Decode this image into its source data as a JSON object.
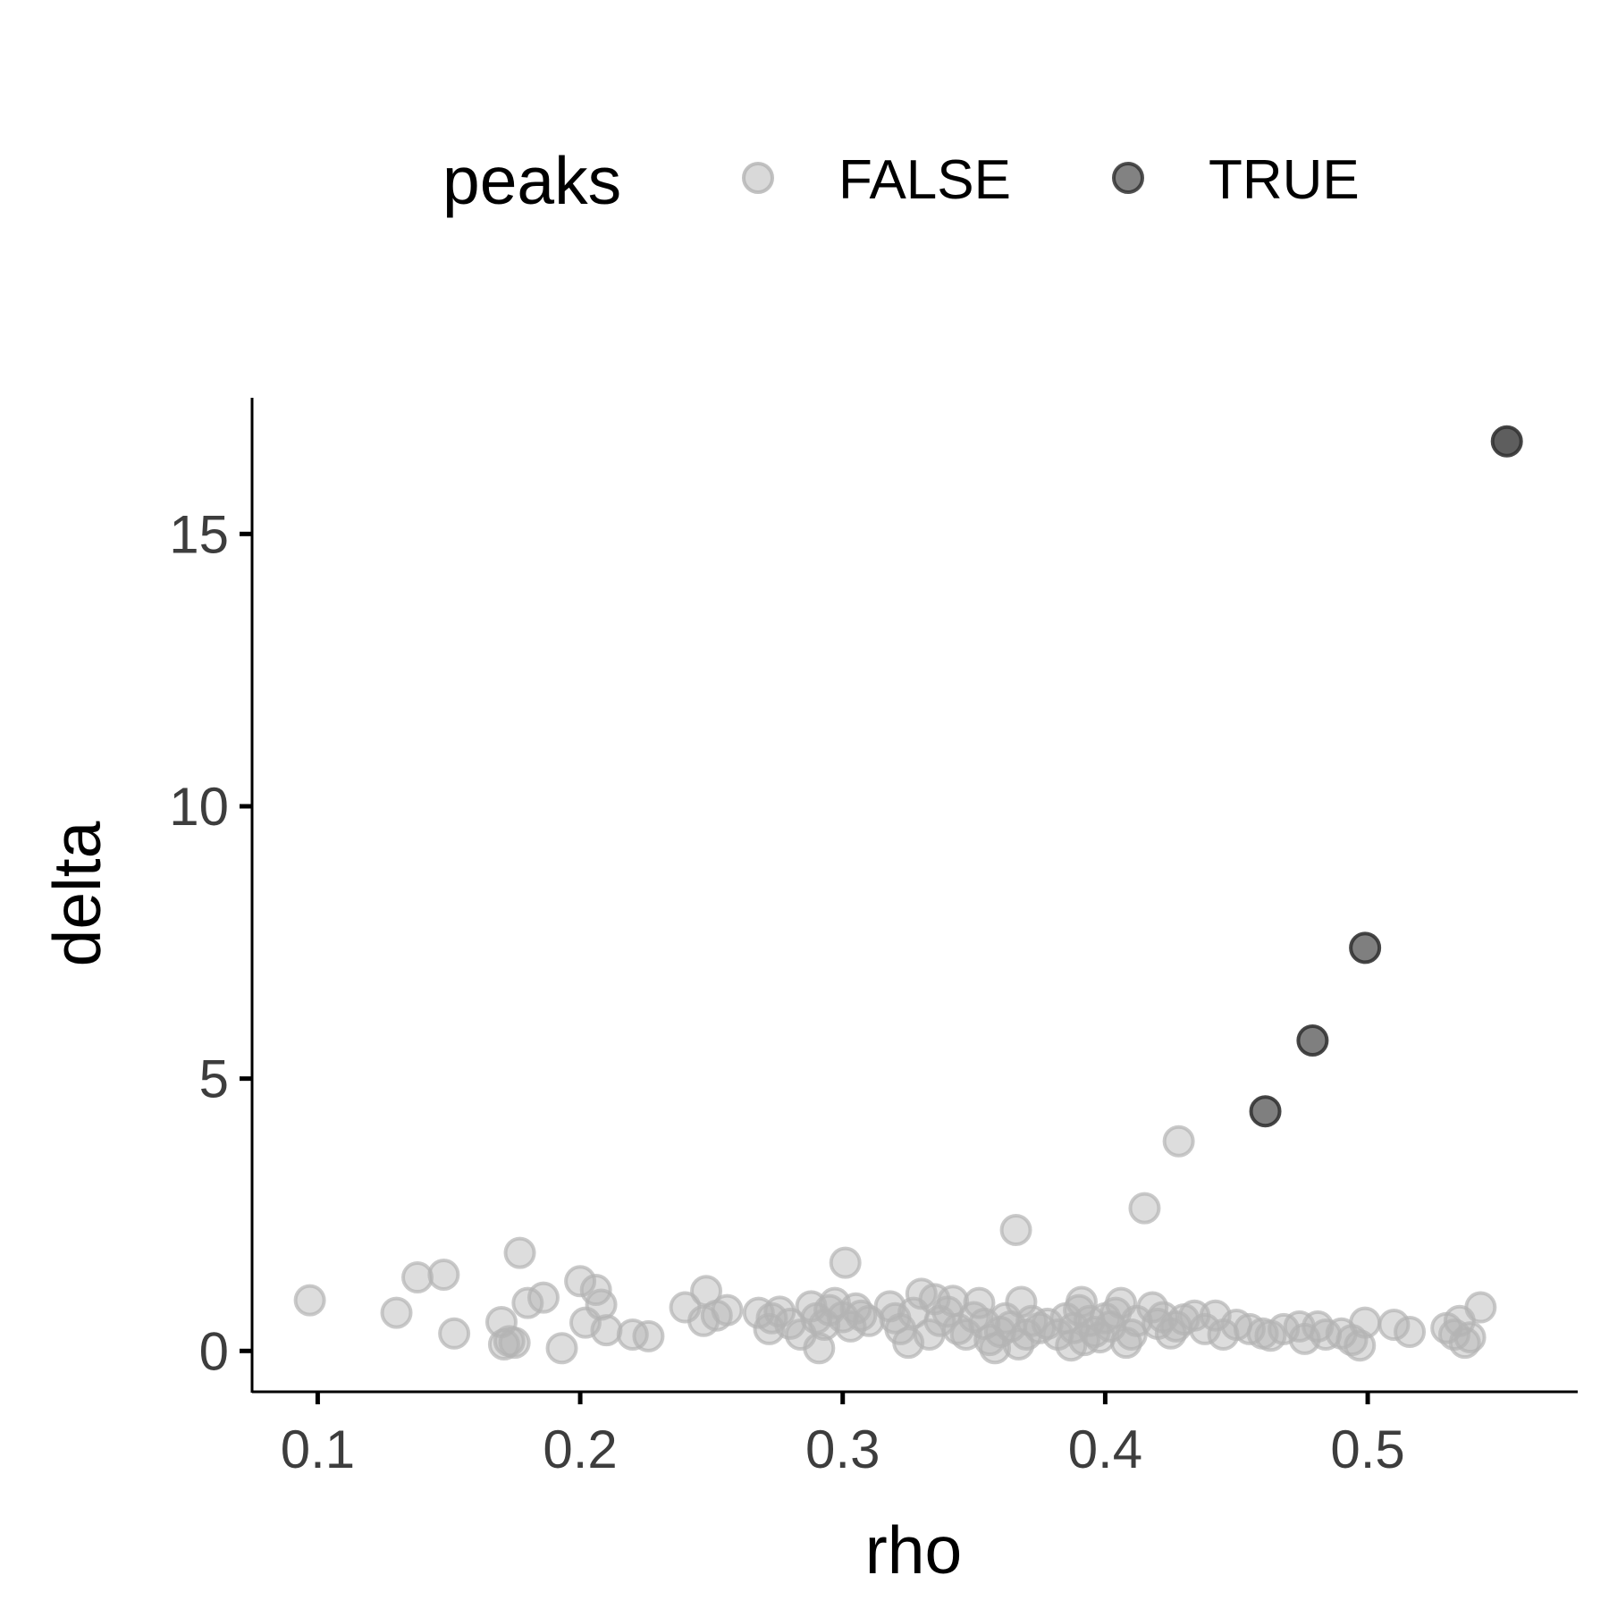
{
  "chart_data": {
    "type": "scatter",
    "xlabel": "rho",
    "ylabel": "delta",
    "xlim": [
      0.075,
      0.58
    ],
    "ylim": [
      -0.75,
      17.5
    ],
    "x_ticks": [
      0.1,
      0.2,
      0.3,
      0.4,
      0.5
    ],
    "x_tick_labels": [
      "0.1",
      "0.2",
      "0.3",
      "0.4",
      "0.5"
    ],
    "y_ticks": [
      0,
      5,
      10,
      15
    ],
    "y_tick_labels": [
      "0",
      "5",
      "10",
      "15"
    ],
    "grid": false,
    "legend": {
      "title": "peaks",
      "position": "top",
      "entries": [
        "FALSE",
        "TRUE"
      ]
    },
    "series": [
      {
        "name": "FALSE",
        "color": "#b3b3b3",
        "points": [
          [
            0.097,
            0.93
          ],
          [
            0.13,
            0.7
          ],
          [
            0.138,
            1.35
          ],
          [
            0.148,
            1.4
          ],
          [
            0.152,
            0.32
          ],
          [
            0.17,
            0.53
          ],
          [
            0.171,
            0.12
          ],
          [
            0.173,
            0.18
          ],
          [
            0.175,
            0.15
          ],
          [
            0.177,
            1.8
          ],
          [
            0.18,
            0.88
          ],
          [
            0.186,
            0.98
          ],
          [
            0.193,
            0.05
          ],
          [
            0.2,
            1.28
          ],
          [
            0.202,
            0.52
          ],
          [
            0.206,
            1.12
          ],
          [
            0.208,
            0.85
          ],
          [
            0.21,
            0.38
          ],
          [
            0.22,
            0.3
          ],
          [
            0.226,
            0.27
          ],
          [
            0.24,
            0.8
          ],
          [
            0.247,
            0.55
          ],
          [
            0.248,
            1.1
          ],
          [
            0.252,
            0.65
          ],
          [
            0.256,
            0.75
          ],
          [
            0.268,
            0.7
          ],
          [
            0.272,
            0.4
          ],
          [
            0.273,
            0.6
          ],
          [
            0.276,
            0.72
          ],
          [
            0.28,
            0.5
          ],
          [
            0.284,
            0.3
          ],
          [
            0.288,
            0.82
          ],
          [
            0.29,
            0.6
          ],
          [
            0.291,
            0.05
          ],
          [
            0.293,
            0.48
          ],
          [
            0.295,
            0.75
          ],
          [
            0.297,
            0.88
          ],
          [
            0.3,
            0.62
          ],
          [
            0.301,
            1.62
          ],
          [
            0.303,
            0.45
          ],
          [
            0.305,
            0.78
          ],
          [
            0.307,
            0.65
          ],
          [
            0.31,
            0.55
          ],
          [
            0.318,
            0.82
          ],
          [
            0.32,
            0.6
          ],
          [
            0.322,
            0.4
          ],
          [
            0.325,
            0.15
          ],
          [
            0.327,
            0.7
          ],
          [
            0.33,
            1.05
          ],
          [
            0.333,
            0.3
          ],
          [
            0.335,
            0.95
          ],
          [
            0.337,
            0.55
          ],
          [
            0.34,
            0.72
          ],
          [
            0.342,
            0.92
          ],
          [
            0.344,
            0.4
          ],
          [
            0.347,
            0.3
          ],
          [
            0.35,
            0.62
          ],
          [
            0.352,
            0.88
          ],
          [
            0.354,
            0.5
          ],
          [
            0.356,
            0.2
          ],
          [
            0.358,
            0.05
          ],
          [
            0.36,
            0.35
          ],
          [
            0.362,
            0.6
          ],
          [
            0.364,
            0.45
          ],
          [
            0.366,
            2.22
          ],
          [
            0.367,
            0.12
          ],
          [
            0.368,
            0.9
          ],
          [
            0.37,
            0.3
          ],
          [
            0.372,
            0.55
          ],
          [
            0.375,
            0.42
          ],
          [
            0.378,
            0.5
          ],
          [
            0.382,
            0.3
          ],
          [
            0.385,
            0.6
          ],
          [
            0.387,
            0.1
          ],
          [
            0.388,
            0.42
          ],
          [
            0.39,
            0.75
          ],
          [
            0.391,
            0.9
          ],
          [
            0.392,
            0.2
          ],
          [
            0.394,
            0.55
          ],
          [
            0.396,
            0.35
          ],
          [
            0.398,
            0.25
          ],
          [
            0.4,
            0.6
          ],
          [
            0.402,
            0.45
          ],
          [
            0.404,
            0.7
          ],
          [
            0.406,
            0.88
          ],
          [
            0.408,
            0.15
          ],
          [
            0.41,
            0.3
          ],
          [
            0.412,
            0.55
          ],
          [
            0.415,
            2.62
          ],
          [
            0.418,
            0.8
          ],
          [
            0.42,
            0.5
          ],
          [
            0.422,
            0.62
          ],
          [
            0.425,
            0.32
          ],
          [
            0.427,
            0.45
          ],
          [
            0.428,
            3.85
          ],
          [
            0.43,
            0.58
          ],
          [
            0.434,
            0.65
          ],
          [
            0.438,
            0.4
          ],
          [
            0.442,
            0.65
          ],
          [
            0.445,
            0.3
          ],
          [
            0.45,
            0.48
          ],
          [
            0.455,
            0.4
          ],
          [
            0.46,
            0.32
          ],
          [
            0.463,
            0.28
          ],
          [
            0.468,
            0.4
          ],
          [
            0.474,
            0.45
          ],
          [
            0.476,
            0.22
          ],
          [
            0.481,
            0.45
          ],
          [
            0.484,
            0.3
          ],
          [
            0.49,
            0.32
          ],
          [
            0.494,
            0.2
          ],
          [
            0.497,
            0.1
          ],
          [
            0.499,
            0.52
          ],
          [
            0.51,
            0.48
          ],
          [
            0.516,
            0.35
          ],
          [
            0.53,
            0.42
          ],
          [
            0.533,
            0.3
          ],
          [
            0.535,
            0.55
          ],
          [
            0.537,
            0.15
          ],
          [
            0.539,
            0.25
          ],
          [
            0.543,
            0.8
          ]
        ]
      },
      {
        "name": "TRUE",
        "color": "#4d4d4d",
        "points": [
          [
            0.461,
            4.4
          ],
          [
            0.479,
            5.7
          ],
          [
            0.499,
            7.4
          ],
          [
            0.553,
            16.7
          ]
        ]
      }
    ]
  }
}
